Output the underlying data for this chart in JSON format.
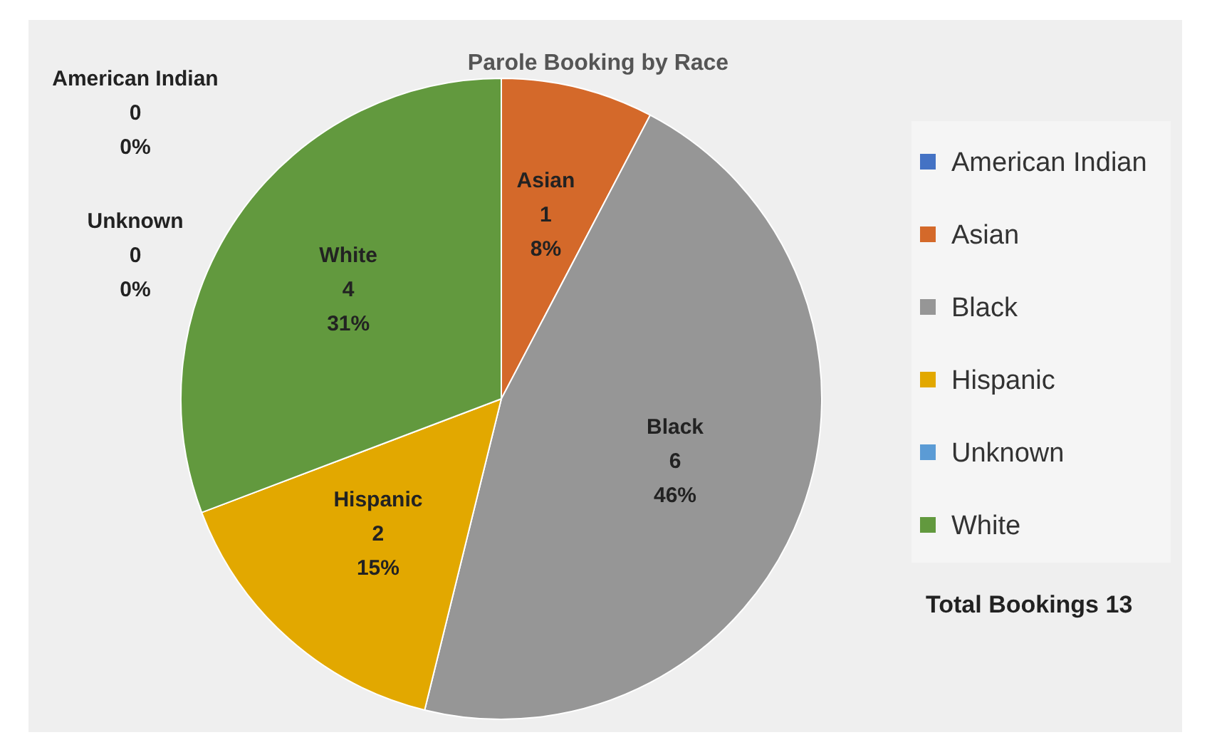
{
  "chart_data": {
    "type": "pie",
    "title": "Parole Booking by Race",
    "categories": [
      "American Indian",
      "Asian",
      "Black",
      "Hispanic",
      "Unknown",
      "White"
    ],
    "values": [
      0,
      1,
      6,
      2,
      0,
      4
    ],
    "colors": [
      "#4472c4",
      "#d4692a",
      "#969696",
      "#e2a800",
      "#5b9bd5",
      "#62993e"
    ],
    "value_labels": [
      "0\n0%",
      "1\n8%",
      "6\n46%",
      "2\n15%",
      "0\n0%",
      "4\n31%"
    ],
    "legend": "right",
    "annotations": [
      "Total Bookings 13"
    ]
  }
}
